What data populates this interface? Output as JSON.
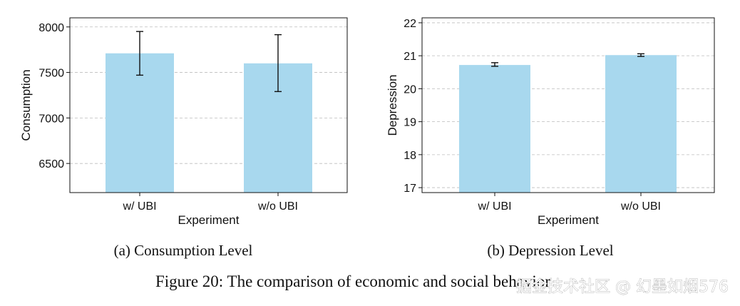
{
  "chart_data": [
    {
      "type": "bar",
      "caption": "(a) Consumption Level",
      "xlabel": "Experiment",
      "ylabel": "Consumption",
      "categories": [
        "w/ UBI",
        "w/o UBI"
      ],
      "values": [
        7710,
        7600
      ],
      "error_low": [
        7470,
        7290
      ],
      "error_high": [
        7950,
        7915
      ],
      "ylim": [
        6180,
        8100
      ],
      "yticks": [
        6500,
        7000,
        7500,
        8000
      ],
      "ytick_labels": [
        "6500",
        "7000",
        "7500",
        "8000"
      ],
      "grid": "horizontal dashed",
      "bar_color": "#a8d8ee"
    },
    {
      "type": "bar",
      "caption": "(b) Depression Level",
      "xlabel": "Experiment",
      "ylabel": "Depression",
      "categories": [
        "w/ UBI",
        "w/o UBI"
      ],
      "values": [
        20.72,
        21.02
      ],
      "error_low": [
        20.68,
        20.98
      ],
      "error_high": [
        20.79,
        21.06
      ],
      "ylim": [
        16.85,
        22.15
      ],
      "yticks": [
        17,
        18,
        19,
        20,
        21,
        22
      ],
      "ytick_labels": [
        "17",
        "18",
        "19",
        "20",
        "21",
        "22"
      ],
      "grid": "horizontal dashed",
      "bar_color": "#a8d8ee"
    }
  ],
  "figure_caption": "Figure 20: The comparison of economic and social behavior",
  "watermark": "掘金技术社区 @ 幻墨如烟576"
}
